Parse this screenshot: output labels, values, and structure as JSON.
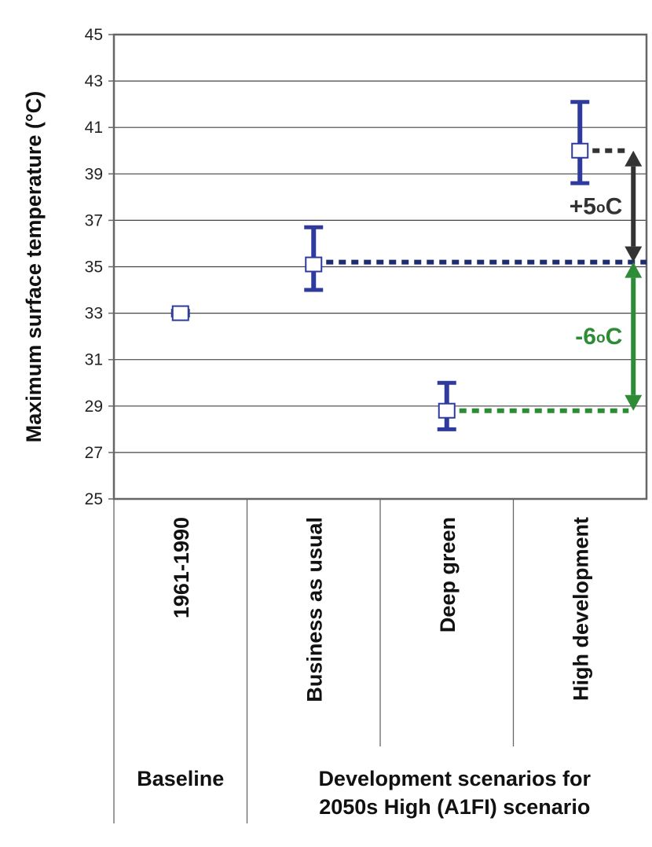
{
  "chart_data": {
    "type": "scatter",
    "ylabel": "Maximum surface temperature (°C)",
    "ylim": [
      25,
      45
    ],
    "yticks": [
      25,
      27,
      29,
      31,
      33,
      35,
      37,
      39,
      41,
      43,
      45
    ],
    "grid": true,
    "categories": [
      "1961-1990",
      "Business as usual",
      "Deep green",
      "High development"
    ],
    "points": [
      {
        "category": "1961-1990",
        "value": 33.0,
        "low": 32.9,
        "high": 33.1
      },
      {
        "category": "Business as usual",
        "value": 35.1,
        "low": 34.0,
        "high": 36.7
      },
      {
        "category": "Deep green",
        "value": 28.8,
        "low": 28.0,
        "high": 30.0
      },
      {
        "category": "High development",
        "value": 40.0,
        "low": 38.6,
        "high": 42.1
      }
    ],
    "groups": [
      {
        "label": "Baseline",
        "categories": [
          "1961-1990"
        ]
      },
      {
        "label_lines": [
          "Development scenarios for",
          "2050s High (A1FI) scenario"
        ],
        "categories": [
          "Business as usual",
          "Deep green",
          "High development"
        ]
      }
    ],
    "annotations": [
      {
        "text_main": "+5",
        "text_sup": "o",
        "text_unit": "C",
        "from": 35.2,
        "to": 40.0,
        "color": "#333333"
      },
      {
        "text_main": "-6",
        "text_sup": "o",
        "text_unit": "C",
        "from": 35.2,
        "to": 28.8,
        "color": "#2e8b36"
      }
    ],
    "colors": {
      "series": "#2e3a9e",
      "grid": "#444444",
      "axis": "#666666",
      "dotted_bau": "#1f2c6e",
      "dotted_hd": "#333333",
      "dotted_dg": "#2e8b36"
    }
  }
}
